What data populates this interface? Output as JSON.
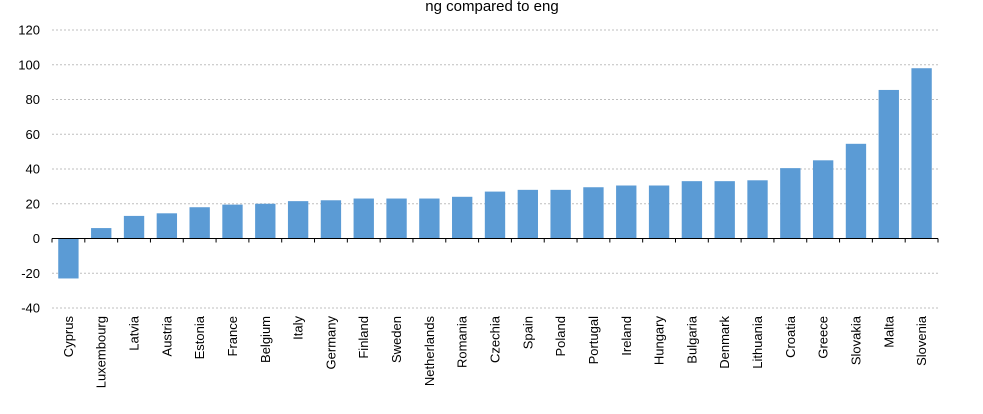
{
  "chart_data": {
    "type": "bar",
    "title": "",
    "title_partial_visible": "ng compared to eng",
    "xlabel": "",
    "ylabel": "",
    "ylim": [
      -40,
      120
    ],
    "yticks": [
      -40,
      -20,
      0,
      20,
      40,
      60,
      80,
      100,
      120
    ],
    "grid": true,
    "legend": "none",
    "bar_color": "#5b9bd5",
    "categories": [
      "Cyprus",
      "Luxembourg",
      "Latvia",
      "Austria",
      "Estonia",
      "France",
      "Belgium",
      "Italy",
      "Germany",
      "Finland",
      "Sweden",
      "Netherlands",
      "Romania",
      "Czechia",
      "Spain",
      "Poland",
      "Portugal",
      "Ireland",
      "Hungary",
      "Bulgaria",
      "Denmark",
      "Lithuania",
      "Croatia",
      "Greece",
      "Slovakia",
      "Malta",
      "Slovenia"
    ],
    "values": [
      -23,
      6,
      13,
      14.5,
      18,
      19.5,
      20,
      21.5,
      22,
      23,
      23,
      23,
      24,
      27,
      28,
      28,
      29.5,
      30.5,
      30.5,
      33,
      33,
      33.5,
      40.5,
      45,
      54.5,
      85.5,
      98
    ]
  }
}
